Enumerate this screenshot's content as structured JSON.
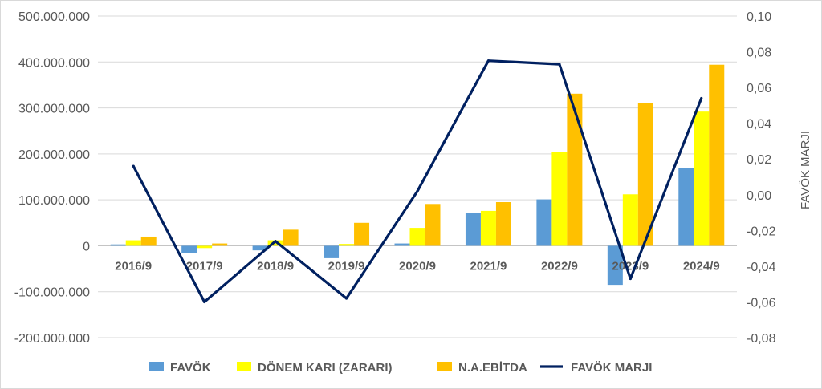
{
  "chart_data": {
    "type": "bar",
    "categories": [
      "2016/9",
      "2017/9",
      "2018/9",
      "2019/9",
      "2020/9",
      "2021/9",
      "2022/9",
      "2023/9",
      "2024/9"
    ],
    "series": [
      {
        "name": "FAVÖK",
        "kind": "bar",
        "axis": "left",
        "color": "#5b9bd5",
        "values": [
          3000000,
          -16000000,
          -10000000,
          -27000000,
          5000000,
          71000000,
          101000000,
          -85000000,
          169000000
        ]
      },
      {
        "name": "DÖNEM KARI (ZARARI)",
        "kind": "bar",
        "axis": "left",
        "color": "#ffff00",
        "values": [
          12000000,
          -5000000,
          12000000,
          4000000,
          39000000,
          76000000,
          204000000,
          112000000,
          292000000
        ]
      },
      {
        "name": "N.A.EBİTDA",
        "kind": "bar",
        "axis": "left",
        "color": "#ffc000",
        "values": [
          20000000,
          5000000,
          35000000,
          50000000,
          91000000,
          95000000,
          331000000,
          310000000,
          394000000
        ]
      },
      {
        "name": "FAVÖK MARJI",
        "kind": "line",
        "axis": "right",
        "color": "#002060",
        "values": [
          0.016,
          -0.06,
          -0.026,
          -0.058,
          0.002,
          0.075,
          0.073,
          -0.047,
          0.054
        ]
      }
    ],
    "left_axis": {
      "ylim": [
        -200000000,
        500000000
      ],
      "ticks": [
        500000000,
        400000000,
        300000000,
        200000000,
        100000000,
        0,
        -100000000,
        -200000000
      ],
      "tick_labels": [
        "500.000.000",
        "400.000.000",
        "300.000.000",
        "200.000.000",
        "100.000.000",
        "0",
        "-100.000.000",
        "-200.000.000"
      ]
    },
    "right_axis": {
      "ylim": [
        -0.08,
        0.1
      ],
      "ticks": [
        0.1,
        0.08,
        0.06,
        0.04,
        0.02,
        0.0,
        -0.02,
        -0.04,
        -0.06,
        -0.08
      ],
      "tick_labels": [
        "0,10",
        "0,08",
        "0,06",
        "0,04",
        "0,02",
        "0,00",
        "-0,02",
        "-0,04",
        "-0,06",
        "-0,08"
      ],
      "ylabel": "FAVÖK MARJI"
    },
    "grid": true,
    "legend": "bottom"
  }
}
